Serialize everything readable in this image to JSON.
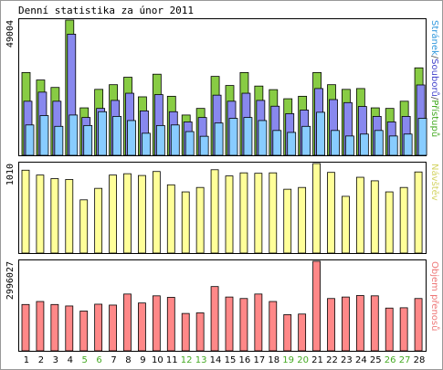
{
  "title": "Denní statistika za únor 2011",
  "colors": {
    "hits": "#88cc44",
    "files": "#8888ee",
    "pages": "#88ccff",
    "visits": "#ffff99",
    "bytes": "#ff8888",
    "legend_hits": "#44aa22",
    "legend_files": "#4444cc",
    "legend_pages": "#3399dd",
    "legend_visits": "#d4d466",
    "legend_bytes": "#ee7777",
    "weekend_label": "#44aa22",
    "weekday_label": "#000000",
    "frame": "#000000",
    "border": "#999999"
  },
  "chart_data": [
    {
      "type": "bar",
      "title": "Denní statistika za únor 2011",
      "categories": [
        "1",
        "2",
        "3",
        "4",
        "5",
        "6",
        "7",
        "8",
        "9",
        "10",
        "11",
        "12",
        "13",
        "14",
        "15",
        "16",
        "17",
        "18",
        "19",
        "20",
        "21",
        "22",
        "23",
        "24",
        "25",
        "26",
        "27",
        "28"
      ],
      "weekend_days": [
        "5",
        "6",
        "12",
        "13",
        "19",
        "20",
        "26",
        "27"
      ],
      "ymax_label": "49004",
      "ylim": [
        0,
        49004
      ],
      "legend_parts": [
        "Stránek",
        "/",
        "Souborů",
        "/",
        "Přístupů"
      ],
      "legend_colors": [
        "#3399dd",
        "#555555",
        "#4444cc",
        "#555555",
        "#44aa22"
      ],
      "series": [
        {
          "name": "Přístupů",
          "values": [
            30000,
            27300,
            24600,
            49004,
            17200,
            23900,
            25600,
            28300,
            21200,
            29400,
            21400,
            14600,
            17000,
            28600,
            25300,
            30000,
            25100,
            23800,
            20500,
            21400,
            30000,
            25600,
            23900,
            24200,
            17200,
            17000,
            19600,
            31700
          ]
        },
        {
          "name": "Souborů",
          "values": [
            19600,
            22900,
            19600,
            43900,
            13700,
            17000,
            19900,
            22500,
            16100,
            22000,
            15800,
            12100,
            13700,
            21800,
            19600,
            22500,
            19900,
            17800,
            15100,
            16400,
            24200,
            20200,
            19100,
            17700,
            14100,
            12100,
            14100,
            25500
          ]
        },
        {
          "name": "Stránek",
          "values": [
            11000,
            14400,
            10500,
            14600,
            10800,
            15800,
            14100,
            12600,
            8000,
            10800,
            11000,
            8600,
            6900,
            11700,
            13400,
            13700,
            12600,
            9000,
            8300,
            10500,
            15600,
            9000,
            7000,
            7700,
            9000,
            7000,
            7700,
            13400
          ]
        }
      ]
    },
    {
      "type": "bar",
      "categories": [
        "1",
        "2",
        "3",
        "4",
        "5",
        "6",
        "7",
        "8",
        "9",
        "10",
        "11",
        "12",
        "13",
        "14",
        "15",
        "16",
        "17",
        "18",
        "19",
        "20",
        "21",
        "22",
        "23",
        "24",
        "25",
        "26",
        "27",
        "28"
      ],
      "ymax_label": "1010",
      "ylim": [
        0,
        1010
      ],
      "legend_parts": [
        "Návštěv"
      ],
      "legend_colors": [
        "#d4d466"
      ],
      "series": [
        {
          "name": "Návštěv",
          "values": [
            935,
            880,
            840,
            830,
            600,
            730,
            880,
            895,
            875,
            920,
            770,
            690,
            740,
            940,
            870,
            905,
            900,
            905,
            720,
            740,
            1010,
            910,
            640,
            855,
            815,
            690,
            740,
            915
          ]
        }
      ]
    },
    {
      "type": "bar",
      "categories": [
        "1",
        "2",
        "3",
        "4",
        "5",
        "6",
        "7",
        "8",
        "9",
        "10",
        "11",
        "12",
        "13",
        "14",
        "15",
        "16",
        "17",
        "18",
        "19",
        "20",
        "21",
        "22",
        "23",
        "24",
        "25",
        "26",
        "27",
        "28"
      ],
      "ymax_label": "2996027",
      "ylim": [
        0,
        2996027
      ],
      "legend_parts": [
        "Objem přenosů"
      ],
      "legend_colors": [
        "#ee7777"
      ],
      "series": [
        {
          "name": "Objem přenosů",
          "values": [
            1550000,
            1650000,
            1550000,
            1500000,
            1330000,
            1560000,
            1530000,
            1900000,
            1600000,
            1840000,
            1790000,
            1250000,
            1270000,
            2150000,
            1800000,
            1750000,
            1900000,
            1650000,
            1210000,
            1230000,
            2996027,
            1750000,
            1800000,
            1850000,
            1840000,
            1430000,
            1440000,
            1750000
          ]
        }
      ]
    }
  ]
}
